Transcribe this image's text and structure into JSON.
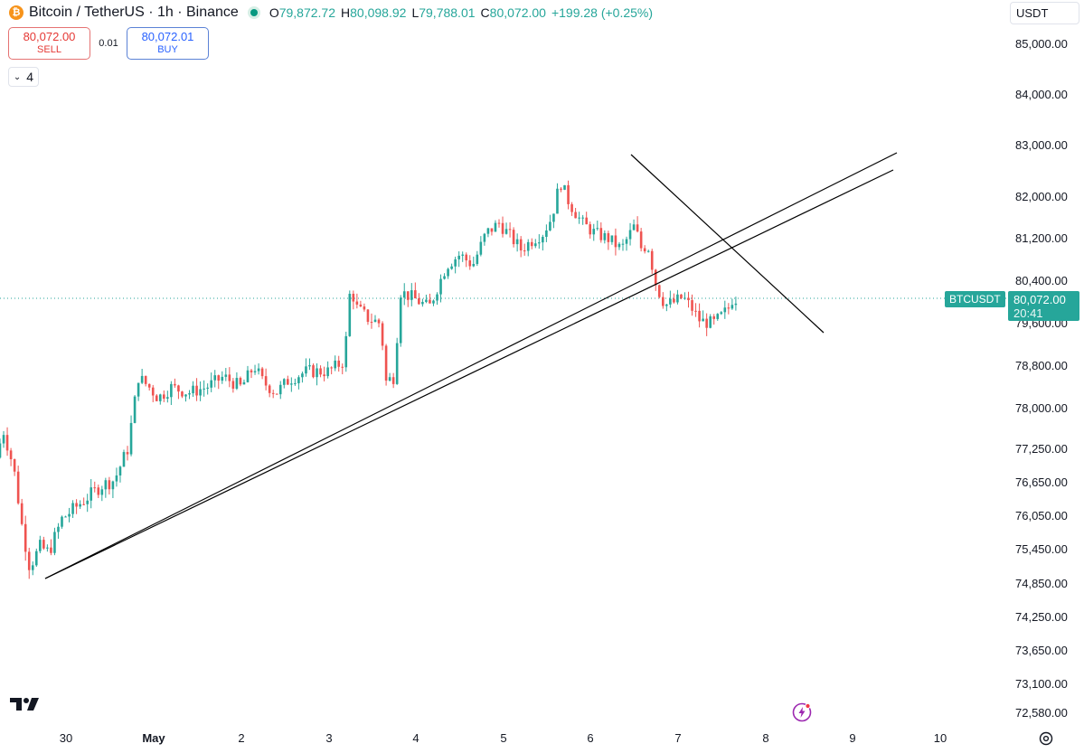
{
  "header": {
    "coin_glyph": "₿",
    "symbol_title": "Bitcoin / TetherUS · 1h · Binance",
    "ohlc": {
      "open_label": "O",
      "open": "79,872.72",
      "high_label": "H",
      "high": "80,098.92",
      "low_label": "L",
      "low": "79,788.01",
      "close_label": "C",
      "close": "80,072.00",
      "change": "+199.28 (+0.25%)"
    }
  },
  "trade": {
    "sell_price": "80,072.00",
    "sell_label": "SELL",
    "spread": "0.01",
    "buy_price": "80,072.01",
    "buy_label": "BUY"
  },
  "indicators_toggle": {
    "count": "4"
  },
  "currency": {
    "label": "USDT"
  },
  "last_price": {
    "symbol": "BTCUSDT",
    "price": "80,072.00",
    "countdown": "20:41"
  },
  "colors": {
    "up": "#26a69a",
    "down": "#ef5350",
    "coin": "#f7931a"
  },
  "chart_data": {
    "type": "candlestick",
    "interval": "1h",
    "y_axis_ticks": [
      85000,
      84000,
      83000,
      82000,
      81200,
      80400,
      79600,
      78800,
      78000,
      77250,
      76650,
      76050,
      75450,
      74850,
      74250,
      73650,
      73100,
      72580
    ],
    "y_axis_labels": [
      "85,000.00",
      "84,000.00",
      "83,000.00",
      "82,000.00",
      "81,200.00",
      "80,400.00",
      "79,600.00",
      "78,800.00",
      "78,000.00",
      "77,250.00",
      "76,650.00",
      "76,050.00",
      "75,450.00",
      "74,850.00",
      "74,250.00",
      "73,650.00",
      "73,100.00",
      "72,580.00"
    ],
    "x_axis_labels": [
      "30",
      "May",
      "2",
      "3",
      "4",
      "5",
      "6",
      "7",
      "8",
      "9",
      "10"
    ],
    "last_price": 80072,
    "price_points": [
      [
        0,
        77100
      ],
      [
        0.08,
        77600
      ],
      [
        0.2,
        76900
      ],
      [
        0.3,
        75800
      ],
      [
        0.38,
        75150
      ],
      [
        0.5,
        75500
      ],
      [
        0.6,
        75400
      ],
      [
        0.75,
        76000
      ],
      [
        0.9,
        76200
      ],
      [
        1.05,
        76400
      ],
      [
        1.2,
        76600
      ],
      [
        1.35,
        76700
      ],
      [
        1.5,
        77250
      ],
      [
        1.58,
        78100
      ],
      [
        1.62,
        78600
      ],
      [
        1.75,
        78400
      ],
      [
        1.85,
        78200
      ],
      [
        2.0,
        78400
      ],
      [
        2.2,
        78300
      ],
      [
        2.4,
        78400
      ],
      [
        2.6,
        78600
      ],
      [
        2.8,
        78400
      ],
      [
        2.95,
        78800
      ],
      [
        3.05,
        78500
      ],
      [
        3.2,
        78300
      ],
      [
        3.35,
        78550
      ],
      [
        3.55,
        78700
      ],
      [
        3.8,
        78700
      ],
      [
        3.98,
        78900
      ],
      [
        4.05,
        80300
      ],
      [
        4.12,
        79900
      ],
      [
        4.25,
        79700
      ],
      [
        4.4,
        79600
      ],
      [
        4.45,
        78500
      ],
      [
        4.55,
        78600
      ],
      [
        4.62,
        80200
      ],
      [
        4.75,
        80100
      ],
      [
        4.95,
        79900
      ],
      [
        5.15,
        80700
      ],
      [
        5.3,
        80900
      ],
      [
        5.45,
        80700
      ],
      [
        5.6,
        81300
      ],
      [
        5.75,
        81500
      ],
      [
        5.9,
        81200
      ],
      [
        6.0,
        81000
      ],
      [
        6.15,
        81200
      ],
      [
        6.25,
        81300
      ],
      [
        6.35,
        81600
      ],
      [
        6.45,
        82300
      ],
      [
        6.55,
        81900
      ],
      [
        6.7,
        81500
      ],
      [
        6.85,
        81300
      ],
      [
        7.0,
        81200
      ],
      [
        7.15,
        81000
      ],
      [
        7.3,
        81450
      ],
      [
        7.38,
        81000
      ],
      [
        7.45,
        81100
      ],
      [
        7.55,
        80300
      ],
      [
        7.65,
        79950
      ],
      [
        7.75,
        80000
      ],
      [
        7.85,
        80100
      ],
      [
        7.95,
        79900
      ],
      [
        8.05,
        79650
      ],
      [
        8.2,
        79600
      ],
      [
        8.3,
        79750
      ],
      [
        8.38,
        79900
      ],
      [
        8.42,
        80072
      ]
    ]
  }
}
